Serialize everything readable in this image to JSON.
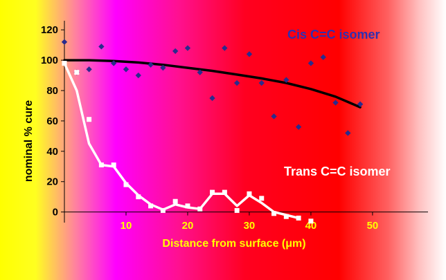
{
  "chart_data": {
    "type": "scatter",
    "title": "",
    "xlabel": "Distance from surface (μm)",
    "ylabel": "nominal % cure",
    "xlim": [
      0,
      59
    ],
    "ylim": [
      -7,
      126
    ],
    "x_ticks": [
      "10",
      "20",
      "30",
      "40",
      "50"
    ],
    "x_tick_values": [
      10,
      20,
      30,
      40,
      50
    ],
    "y_ticks": [
      "120",
      "100",
      "80",
      "60",
      "40",
      "20",
      "0"
    ],
    "y_tick_values": [
      120,
      100,
      80,
      60,
      40,
      20,
      0
    ],
    "grid": false,
    "annotations": {
      "cis": "Cis C=C isomer",
      "trans": "Trans C=C isomer"
    },
    "series": [
      {
        "name": "Cis C=C isomer",
        "marker": "diamond",
        "color": "#2b2b8c",
        "x": [
          0,
          2,
          4,
          6,
          8,
          10,
          12,
          14,
          16,
          18,
          20,
          22,
          24,
          26,
          28,
          30,
          32,
          34,
          36,
          38,
          40,
          42,
          44,
          46,
          48
        ],
        "y": [
          112,
          92,
          94,
          109,
          98,
          94,
          90,
          97,
          95,
          106,
          108,
          92,
          75,
          108,
          85,
          104,
          85,
          63,
          87,
          56,
          98,
          102,
          72,
          52,
          71
        ]
      },
      {
        "name": "Trans C=C isomer",
        "marker": "square",
        "color": "#ffffff",
        "x": [
          0,
          2,
          4,
          6,
          8,
          10,
          12,
          14,
          16,
          18,
          20,
          22,
          24,
          26,
          28,
          30,
          32,
          34,
          36,
          38,
          40
        ],
        "y": [
          98,
          92,
          61,
          31,
          31,
          18,
          10,
          4,
          1,
          7,
          4,
          2,
          13,
          13,
          1,
          12,
          9,
          -1,
          -3,
          -4,
          -6
        ]
      }
    ],
    "trendlines": [
      {
        "series": "Cis C=C isomer",
        "color": "#000000",
        "x": [
          0,
          4,
          8,
          12,
          16,
          20,
          24,
          28,
          32,
          36,
          40,
          44,
          48
        ],
        "y": [
          100,
          100,
          99.5,
          98.5,
          97,
          95,
          93,
          90.5,
          88,
          85,
          81,
          76,
          69
        ]
      },
      {
        "series": "Trans C=C isomer",
        "color": "#ffffff",
        "x": [
          0,
          2,
          4,
          6,
          8,
          10,
          12,
          14,
          16,
          18,
          20,
          22,
          24,
          26,
          28,
          30,
          32,
          34,
          36,
          38
        ],
        "y": [
          98,
          80,
          45,
          31,
          30,
          19,
          11,
          5,
          1.5,
          5,
          3,
          2,
          12,
          12,
          4,
          11,
          6,
          0,
          -2,
          -4
        ]
      }
    ],
    "colors": {
      "axis": "#000000",
      "x_tick_text": "#ffff00",
      "xlabel_text": "#ffff00",
      "ylabel_text": "#000000",
      "cis_label_text": "#2f2fb0",
      "trans_label_text": "#ffffff",
      "background_gradient": [
        "#ffff00",
        "#ff00ff",
        "#ff0000",
        "#ff8080",
        "#ffffff"
      ]
    }
  }
}
